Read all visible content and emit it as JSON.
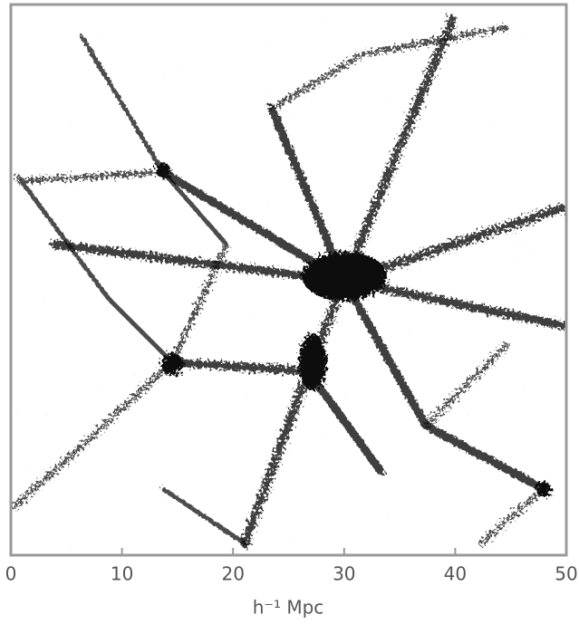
{
  "chart_data": {
    "type": "image",
    "xlabel": "h⁻¹ Mpc",
    "xlim": [
      0,
      50
    ],
    "xticks": [
      0,
      10,
      20,
      30,
      40,
      50
    ]
  }
}
